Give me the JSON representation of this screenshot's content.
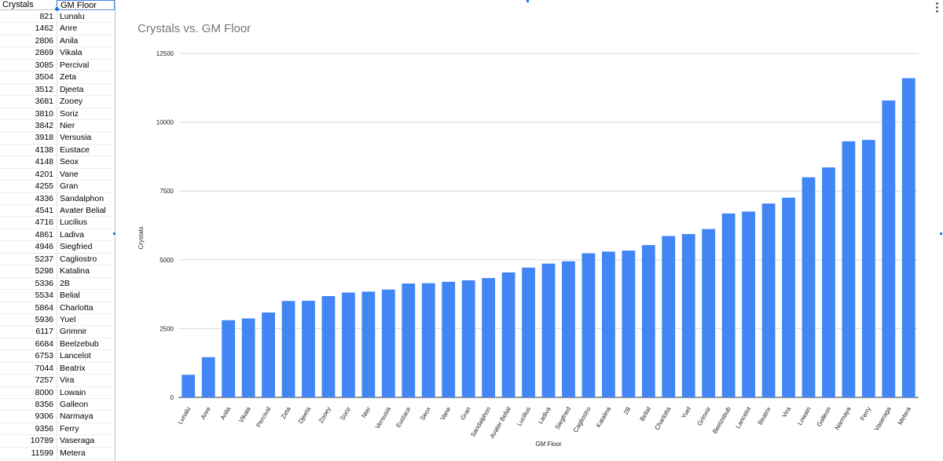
{
  "sheet": {
    "col_a_header": "Crystals",
    "col_b_header": "GM Floor"
  },
  "chart_data": {
    "type": "bar",
    "title": "Crystals vs. GM Floor",
    "xlabel": "GM Floor",
    "ylabel": "Crystals",
    "ylim": [
      0,
      12500
    ],
    "yticks": [
      0,
      2500,
      5000,
      7500,
      10000,
      12500
    ],
    "grid": true,
    "bar_color": "#4285f4",
    "categories": [
      "Lunalu",
      "Anre",
      "Anila",
      "Vikala",
      "Percival",
      "Zeta",
      "Djeeta",
      "Zooey",
      "Soriz",
      "Nier",
      "Versusia",
      "Eustace",
      "Seox",
      "Vane",
      "Gran",
      "Sandalphon",
      "Avater Belial",
      "Lucilius",
      "Ladiva",
      "Siegfried",
      "Cagliostro",
      "Katalina",
      "2B",
      "Belial",
      "Charlotta",
      "Yuel",
      "Grimnir",
      "Beelzebub",
      "Lancelot",
      "Beatrix",
      "Vira",
      "Lowain",
      "Galleon",
      "Narmaya",
      "Ferry",
      "Vaseraga",
      "Metera"
    ],
    "values": [
      821,
      1462,
      2806,
      2869,
      3085,
      3504,
      3512,
      3681,
      3810,
      3842,
      3918,
      4138,
      4148,
      4201,
      4255,
      4336,
      4541,
      4716,
      4861,
      4946,
      5237,
      5298,
      5336,
      5534,
      5864,
      5936,
      6117,
      6684,
      6753,
      7044,
      7257,
      8000,
      8356,
      9306,
      9356,
      10789,
      11599
    ]
  }
}
